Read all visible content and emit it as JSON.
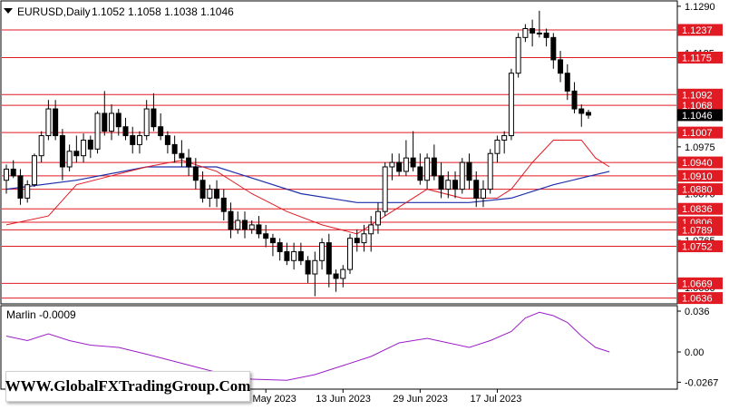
{
  "header": {
    "symbol_label": "EURUSD,Daily",
    "ohlc_text": "1.1052 1.1058 1.1038 1.1046"
  },
  "indicator": {
    "label": "Marlin -0.0009"
  },
  "watermark": {
    "text": "WWW.GlobalFXTradingGroup.Com"
  },
  "colors": {
    "bull": "#ffffff",
    "bear": "#000000",
    "level_line": "#e01b24",
    "ma_fast": "#e01b24",
    "ma_slow": "#1f2fa8",
    "oscillator": "#9b1ec8",
    "price_badge_red": "#e01b24",
    "price_badge_black": "#000000"
  },
  "chart_data": [
    {
      "type": "candlestick",
      "y_axis": {
        "range": [
          1.0625,
          1.13
        ],
        "tick_labels": [
          "1.1290",
          "1.1185",
          "1.0975",
          "1.0870",
          "1.0765",
          "1.0660"
        ],
        "highlighted_levels": [
          "1.1237",
          "1.1175",
          "1.1092",
          "1.1068",
          "1.1046",
          "1.1007",
          "1.0940",
          "1.0910",
          "1.0880",
          "1.0836",
          "1.0806",
          "1.0789",
          "1.0752",
          "1.0669",
          "1.0636"
        ]
      },
      "x_axis": {
        "tick_labels": [
          "26 May 2023",
          "13 Jun 2023",
          "29 Jun 2023",
          "17 Jul 2023"
        ]
      },
      "levels": [
        1.1237,
        1.1175,
        1.1092,
        1.1068,
        1.1007,
        1.094,
        1.091,
        1.088,
        1.0836,
        1.0806,
        1.0789,
        1.0752,
        1.0669,
        1.0636
      ],
      "current_price": 1.1046,
      "ohlc": [
        [
          1.09,
          1.0935,
          1.087,
          1.0925
        ],
        [
          1.0925,
          1.0945,
          1.0905,
          1.091
        ],
        [
          1.091,
          1.0925,
          1.0845,
          1.086
        ],
        [
          1.086,
          1.09,
          1.085,
          1.089
        ],
        [
          1.089,
          1.096,
          1.0885,
          1.0955
        ],
        [
          1.0955,
          1.101,
          1.094,
          1.1
        ],
        [
          1.1,
          1.108,
          1.099,
          1.106
        ],
        [
          1.106,
          1.108,
          1.099,
          1.1
        ],
        [
          1.1,
          1.1015,
          1.09,
          1.093
        ],
        [
          1.093,
          1.098,
          1.092,
          1.0965
        ],
        [
          1.0965,
          1.1,
          1.094,
          1.0955
        ],
        [
          1.0955,
          1.1005,
          1.094,
          1.099
        ],
        [
          1.099,
          1.1,
          1.095,
          1.097
        ],
        [
          1.097,
          1.1055,
          1.096,
          1.105
        ],
        [
          1.105,
          1.11,
          1.1,
          1.101
        ],
        [
          1.101,
          1.107,
          1.099,
          1.105
        ],
        [
          1.105,
          1.106,
          1.1,
          1.102
        ],
        [
          1.102,
          1.104,
          1.099,
          1.1
        ],
        [
          1.1,
          1.102,
          1.096,
          1.098
        ],
        [
          1.098,
          1.101,
          1.096,
          1.1
        ],
        [
          1.1,
          1.108,
          1.099,
          1.106
        ],
        [
          1.106,
          1.1095,
          1.101,
          1.102
        ],
        [
          1.102,
          1.105,
          1.099,
          1.1
        ],
        [
          1.1,
          1.101,
          1.096,
          1.098
        ],
        [
          1.098,
          1.1,
          1.094,
          1.096
        ],
        [
          1.096,
          1.099,
          1.093,
          1.095
        ],
        [
          1.095,
          1.097,
          1.091,
          1.093
        ],
        [
          1.093,
          1.095,
          1.088,
          1.09
        ],
        [
          1.09,
          1.092,
          1.085,
          1.086
        ],
        [
          1.086,
          1.089,
          1.084,
          1.088
        ],
        [
          1.088,
          1.09,
          1.084,
          1.086
        ],
        [
          1.086,
          1.088,
          1.081,
          1.083
        ],
        [
          1.083,
          1.085,
          1.077,
          1.079
        ],
        [
          1.079,
          1.083,
          1.078,
          1.081
        ],
        [
          1.081,
          1.083,
          1.077,
          1.079
        ],
        [
          1.079,
          1.081,
          1.078,
          1.08
        ],
        [
          1.08,
          1.082,
          1.077,
          1.078
        ],
        [
          1.078,
          1.08,
          1.075,
          1.077
        ],
        [
          1.077,
          1.078,
          1.073,
          1.076
        ],
        [
          1.076,
          1.077,
          1.072,
          1.074
        ],
        [
          1.074,
          1.076,
          1.071,
          1.072
        ],
        [
          1.072,
          1.076,
          1.07,
          1.074
        ],
        [
          1.074,
          1.076,
          1.071,
          1.072
        ],
        [
          1.072,
          1.073,
          1.067,
          1.069
        ],
        [
          1.069,
          1.074,
          1.064,
          1.072
        ],
        [
          1.072,
          1.077,
          1.07,
          1.076
        ],
        [
          1.076,
          1.078,
          1.066,
          1.069
        ],
        [
          1.069,
          1.07,
          1.065,
          1.068
        ],
        [
          1.068,
          1.071,
          1.066,
          1.07
        ],
        [
          1.07,
          1.078,
          1.069,
          1.077
        ],
        [
          1.077,
          1.079,
          1.074,
          1.076
        ],
        [
          1.076,
          1.08,
          1.074,
          1.078
        ],
        [
          1.078,
          1.082,
          1.074,
          1.08
        ],
        [
          1.08,
          1.085,
          1.078,
          1.083
        ],
        [
          1.083,
          1.094,
          1.082,
          1.093
        ],
        [
          1.093,
          1.096,
          1.09,
          1.094
        ],
        [
          1.094,
          1.096,
          1.091,
          1.092
        ],
        [
          1.092,
          1.099,
          1.091,
          1.095
        ],
        [
          1.095,
          1.101,
          1.092,
          1.093
        ],
        [
          1.093,
          1.096,
          1.089,
          1.09
        ],
        [
          1.09,
          1.096,
          1.088,
          1.095
        ],
        [
          1.095,
          1.098,
          1.09,
          1.091
        ],
        [
          1.091,
          1.094,
          1.086,
          1.088
        ],
        [
          1.088,
          1.092,
          1.086,
          1.09
        ],
        [
          1.09,
          1.092,
          1.086,
          1.088
        ],
        [
          1.088,
          1.095,
          1.087,
          1.094
        ],
        [
          1.094,
          1.096,
          1.088,
          1.09
        ],
        [
          1.09,
          1.092,
          1.084,
          1.086
        ],
        [
          1.086,
          1.09,
          1.084,
          1.088
        ],
        [
          1.088,
          1.097,
          1.087,
          1.096
        ],
        [
          1.096,
          1.1,
          1.094,
          1.099
        ],
        [
          1.099,
          1.101,
          1.096,
          1.1
        ],
        [
          1.1,
          1.115,
          1.099,
          1.114
        ],
        [
          1.114,
          1.123,
          1.113,
          1.122
        ],
        [
          1.122,
          1.125,
          1.121,
          1.124
        ],
        [
          1.124,
          1.126,
          1.12,
          1.123
        ],
        [
          1.123,
          1.128,
          1.122,
          1.123
        ],
        [
          1.123,
          1.124,
          1.12,
          1.122
        ],
        [
          1.122,
          1.123,
          1.115,
          1.117
        ],
        [
          1.117,
          1.119,
          1.112,
          1.114
        ],
        [
          1.114,
          1.116,
          1.108,
          1.11
        ],
        [
          1.11,
          1.112,
          1.105,
          1.106
        ],
        [
          1.106,
          1.107,
          1.102,
          1.105
        ],
        [
          1.1052,
          1.1058,
          1.1038,
          1.1046
        ]
      ],
      "ma_fast": [
        [
          0,
          1.08
        ],
        [
          6,
          1.082
        ],
        [
          10,
          1.089
        ],
        [
          15,
          1.091
        ],
        [
          20,
          1.093
        ],
        [
          25,
          1.0945
        ],
        [
          30,
          1.092
        ],
        [
          35,
          1.087
        ],
        [
          40,
          1.083
        ],
        [
          45,
          1.08
        ],
        [
          50,
          1.078
        ],
        [
          55,
          1.083
        ],
        [
          60,
          1.088
        ],
        [
          65,
          1.086
        ],
        [
          70,
          1.086
        ],
        [
          72,
          1.088
        ],
        [
          75,
          1.094
        ],
        [
          78,
          1.099
        ],
        [
          82,
          1.099
        ],
        [
          84,
          1.095
        ],
        [
          86,
          1.093
        ]
      ],
      "ma_slow": [
        [
          0,
          1.088
        ],
        [
          10,
          1.09
        ],
        [
          20,
          1.093
        ],
        [
          30,
          1.093
        ],
        [
          36,
          1.09
        ],
        [
          42,
          1.087
        ],
        [
          50,
          1.085
        ],
        [
          58,
          1.085
        ],
        [
          66,
          1.085
        ],
        [
          72,
          1.086
        ],
        [
          78,
          1.089
        ],
        [
          86,
          1.092
        ]
      ]
    },
    {
      "type": "line",
      "name": "Marlin",
      "y_axis": {
        "range": [
          -0.032,
          0.04
        ],
        "tick_labels": [
          "0.036",
          "0.00",
          "-0.0267"
        ]
      },
      "values": [
        [
          0,
          0.014
        ],
        [
          3,
          0.01
        ],
        [
          6,
          0.016
        ],
        [
          9,
          0.01
        ],
        [
          12,
          0.006
        ],
        [
          16,
          0.004
        ],
        [
          20,
          -0.002
        ],
        [
          25,
          -0.01
        ],
        [
          30,
          -0.018
        ],
        [
          35,
          -0.024
        ],
        [
          40,
          -0.025
        ],
        [
          44,
          -0.02
        ],
        [
          48,
          -0.012
        ],
        [
          52,
          -0.004
        ],
        [
          56,
          0.008
        ],
        [
          60,
          0.012
        ],
        [
          63,
          0.008
        ],
        [
          66,
          0.004
        ],
        [
          69,
          0.01
        ],
        [
          72,
          0.018
        ],
        [
          74,
          0.03
        ],
        [
          76,
          0.035
        ],
        [
          78,
          0.032
        ],
        [
          80,
          0.026
        ],
        [
          82,
          0.014
        ],
        [
          84,
          0.004
        ],
        [
          86,
          0.0
        ]
      ]
    }
  ]
}
